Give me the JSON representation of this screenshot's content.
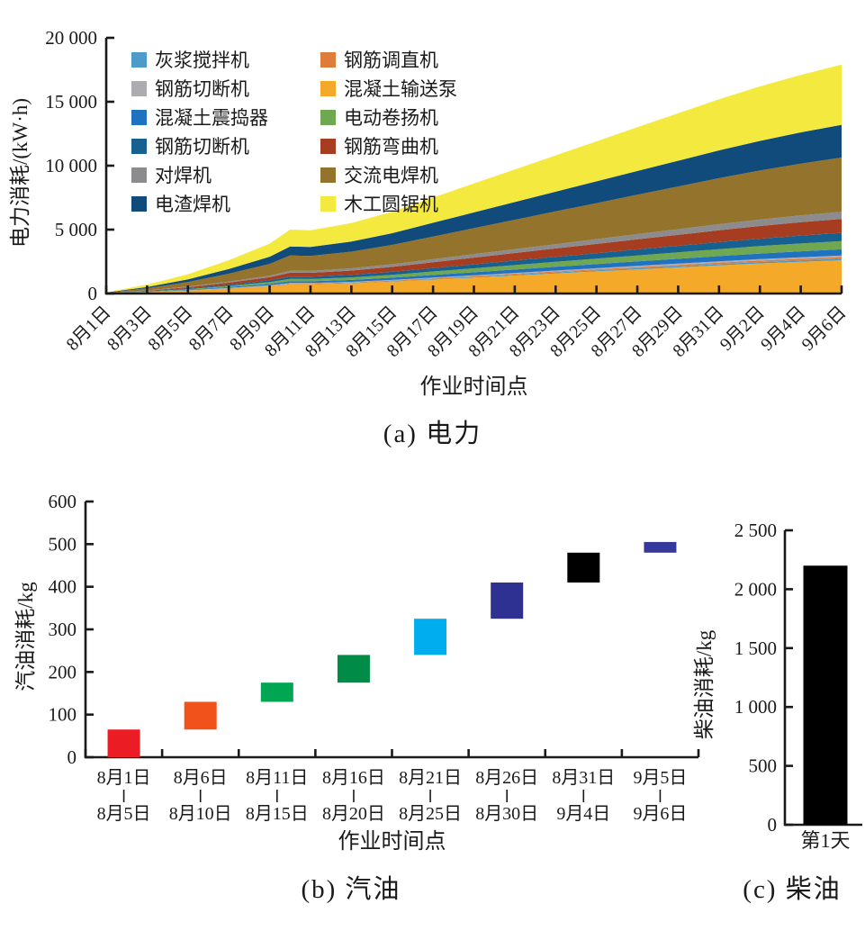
{
  "figure": {
    "captions": {
      "a": "(a) 电力",
      "b": "(b) 汽油",
      "c": "(c) 柴油"
    }
  },
  "chart_data": [
    {
      "id": "electricity",
      "type": "area",
      "caption": "(a) 电力",
      "xlabel": "作业时间点",
      "ylabel": "电力消耗/(kW·h)",
      "ylim": [
        0,
        20000
      ],
      "ytick_values": [
        0,
        5000,
        10000,
        15000,
        20000
      ],
      "yticks": [
        "0",
        "5 000",
        "10 000",
        "15 000",
        "20 000"
      ],
      "x_tick_labels": [
        "8月1日",
        "8月3日",
        "8月5日",
        "8月7日",
        "8月9日",
        "8月11日",
        "8月13日",
        "8月15日",
        "8月17日",
        "8月19日",
        "8月21日",
        "8月23日",
        "8月25日",
        "8月27日",
        "8月29日",
        "8月31日",
        "9月2日",
        "9月4日",
        "9月6日"
      ],
      "x": [
        0,
        1,
        2,
        3,
        4,
        4.5,
        5,
        6,
        7,
        8,
        9,
        10,
        11,
        12,
        13,
        14,
        15,
        16,
        17,
        18
      ],
      "series": [
        {
          "name": "混凝土输送泵",
          "color": "#F5A929",
          "values": [
            15,
            100,
            220,
            380,
            570,
            725,
            720,
            800,
            930,
            1090,
            1250,
            1410,
            1570,
            1730,
            1890,
            2040,
            2200,
            2350,
            2480,
            2600
          ]
        },
        {
          "name": "灰浆搅拌机",
          "color": "#4D9BC9",
          "values": [
            1,
            5,
            11,
            18,
            27,
            35,
            35,
            39,
            45,
            53,
            60,
            68,
            76,
            83,
            91,
            99,
            106,
            113,
            120,
            125
          ]
        },
        {
          "name": "钢筋调直机",
          "color": "#DE7C3B",
          "values": [
            1,
            5,
            11,
            18,
            27,
            35,
            35,
            39,
            45,
            53,
            60,
            68,
            76,
            83,
            91,
            99,
            106,
            113,
            120,
            125
          ]
        },
        {
          "name": "钢筋切断机",
          "color": "#ACACB1",
          "values": [
            1,
            5,
            11,
            18,
            27,
            35,
            35,
            39,
            45,
            53,
            60,
            68,
            76,
            83,
            91,
            99,
            106,
            113,
            120,
            125
          ]
        },
        {
          "name": "混凝土震捣器",
          "color": "#1F72BF",
          "values": [
            3,
            19,
            41,
            70,
            105,
            135,
            134,
            149,
            173,
            203,
            232,
            262,
            292,
            321,
            351,
            381,
            410,
            437,
            462,
            483
          ]
        },
        {
          "name": "电动卷扬机",
          "color": "#6FA850",
          "values": [
            4,
            25,
            54,
            94,
            140,
            180,
            178,
            198,
            230,
            270,
            310,
            349,
            389,
            428,
            468,
            508,
            547,
            583,
            616,
            644
          ]
        },
        {
          "name": "钢筋切断机2",
          "color": "#16618F",
          "values": [
            4,
            25,
            54,
            94,
            140,
            180,
            178,
            198,
            230,
            270,
            310,
            349,
            389,
            428,
            468,
            508,
            547,
            583,
            616,
            644
          ]
        },
        {
          "name": "钢筋弯曲机",
          "color": "#A63D21",
          "values": [
            6,
            43,
            92,
            159,
            238,
            305,
            302,
            336,
            390,
            458,
            525,
            592,
            659,
            726,
            793,
            860,
            927,
            988,
            1043,
            1092
          ]
        },
        {
          "name": "对焊机",
          "color": "#8C8C8E",
          "values": [
            3,
            22,
            47,
            81,
            121,
            155,
            153,
            171,
            198,
            233,
            267,
            301,
            335,
            369,
            403,
            437,
            471,
            502,
            530,
            555
          ]
        },
        {
          "name": "交流电焊机",
          "color": "#94742D",
          "values": [
            24,
            166,
            356,
            616,
            924,
            1185,
            1173,
            1304,
            1517,
            1778,
            2038,
            2299,
            2560,
            2820,
            3081,
            3342,
            3602,
            3839,
            4053,
            4242
          ]
        },
        {
          "name": "电渣焊机",
          "color": "#114B7C",
          "values": [
            14,
            100,
            215,
            372,
            558,
            715,
            708,
            787,
            915,
            1073,
            1230,
            1387,
            1544,
            1702,
            1859,
            2016,
            2174,
            2317,
            2445,
            2560
          ]
        },
        {
          "name": "木工圆锯机",
          "color": "#F4E93E",
          "values": [
            26,
            184,
            395,
            684,
            1026,
            1315,
            1302,
            1447,
            1683,
            1973,
            2262,
            2551,
            2840,
            3130,
            3419,
            3708,
            3998,
            4261,
            4497,
            4708
          ]
        }
      ],
      "legend_columns": [
        [
          {
            "label": "灰浆搅拌机",
            "color": "#4D9BC9"
          },
          {
            "label": "钢筋切断机",
            "color": "#ACACB1"
          },
          {
            "label": "混凝土震捣器",
            "color": "#1F72BF"
          },
          {
            "label": "钢筋切断机",
            "color": "#16618F"
          },
          {
            "label": "对焊机",
            "color": "#8C8C8E"
          },
          {
            "label": "电渣焊机",
            "color": "#114B7C"
          }
        ],
        [
          {
            "label": "钢筋调直机",
            "color": "#DE7C3B"
          },
          {
            "label": "混凝土输送泵",
            "color": "#F5A929"
          },
          {
            "label": "电动卷扬机",
            "color": "#6FA850"
          },
          {
            "label": "钢筋弯曲机",
            "color": "#A63D21"
          },
          {
            "label": "交流电焊机",
            "color": "#94742D"
          },
          {
            "label": "木工圆锯机",
            "color": "#F4E93E"
          }
        ]
      ]
    },
    {
      "id": "gasoline",
      "type": "floating-bar",
      "caption": "(b) 汽油",
      "xlabel": "作业时间点",
      "ylabel": "汽油消耗/kg",
      "ylim": [
        0,
        600
      ],
      "ytick_values": [
        0,
        100,
        200,
        300,
        400,
        500,
        600
      ],
      "yticks": [
        "0",
        "100",
        "200",
        "300",
        "400",
        "500",
        "600"
      ],
      "bars": [
        {
          "period_start": "8月1日",
          "period_end": "8月5日",
          "from": 0,
          "to": 65,
          "color": "#EC1C24"
        },
        {
          "period_start": "8月6日",
          "period_end": "8月10日",
          "from": 65,
          "to": 130,
          "color": "#F1511B"
        },
        {
          "period_start": "8月11日",
          "period_end": "8月15日",
          "from": 130,
          "to": 175,
          "color": "#00A651"
        },
        {
          "period_start": "8月16日",
          "period_end": "8月20日",
          "from": 175,
          "to": 240,
          "color": "#008C46"
        },
        {
          "period_start": "8月21日",
          "period_end": "8月25日",
          "from": 240,
          "to": 325,
          "color": "#00AEEF"
        },
        {
          "period_start": "8月26日",
          "period_end": "8月30日",
          "from": 325,
          "to": 410,
          "color": "#2E3192"
        },
        {
          "period_start": "8月31日",
          "period_end": "9月4日",
          "from": 410,
          "to": 480,
          "color": "#000000"
        },
        {
          "period_start": "9月5日",
          "period_end": "9月6日",
          "from": 480,
          "to": 505,
          "color": "#34399B"
        }
      ]
    },
    {
      "id": "diesel",
      "type": "bar",
      "caption": "(c) 柴油",
      "ylabel": "柴油消耗/kg",
      "ylim": [
        0,
        2500
      ],
      "ytick_values": [
        0,
        500,
        1000,
        1500,
        2000,
        2500
      ],
      "yticks": [
        "0",
        "500",
        "1 000",
        "1 500",
        "2 000",
        "2 500"
      ],
      "categories": [
        "第1天"
      ],
      "values": [
        2200
      ],
      "color": "#000000"
    }
  ]
}
